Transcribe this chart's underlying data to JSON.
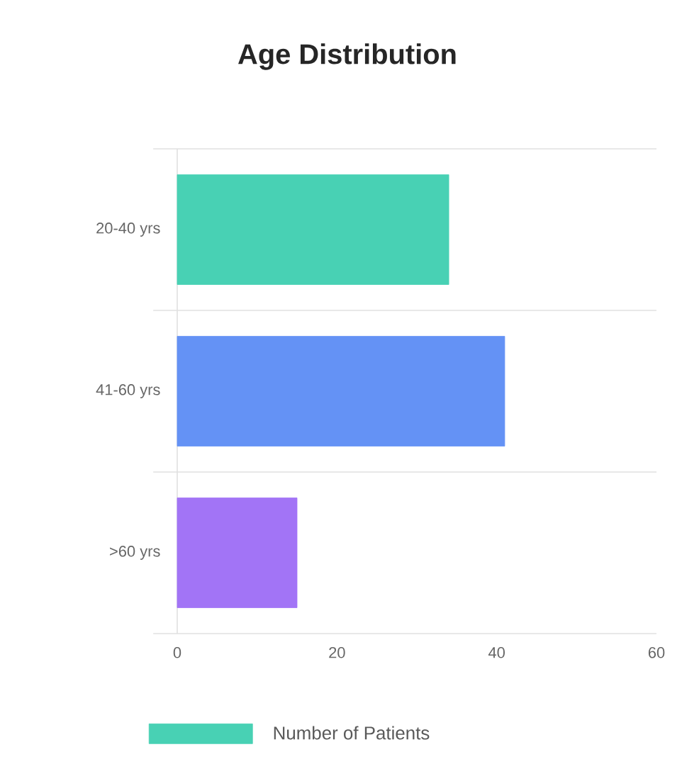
{
  "chart_data": {
    "type": "bar",
    "orientation": "horizontal",
    "title": "Age Distribution",
    "categories": [
      "20-40 yrs",
      "41-60 yrs",
      ">60 yrs"
    ],
    "series": [
      {
        "name": "Number of Patients",
        "color": "#48d1b4",
        "colors": [
          "#48d1b4",
          "#6492f5",
          "#a274f6"
        ],
        "values": [
          34,
          41,
          15
        ]
      }
    ],
    "xlim": [
      0,
      60
    ],
    "xticks": [
      0,
      20,
      40,
      60
    ],
    "grid": "y",
    "legend": "bottom"
  }
}
